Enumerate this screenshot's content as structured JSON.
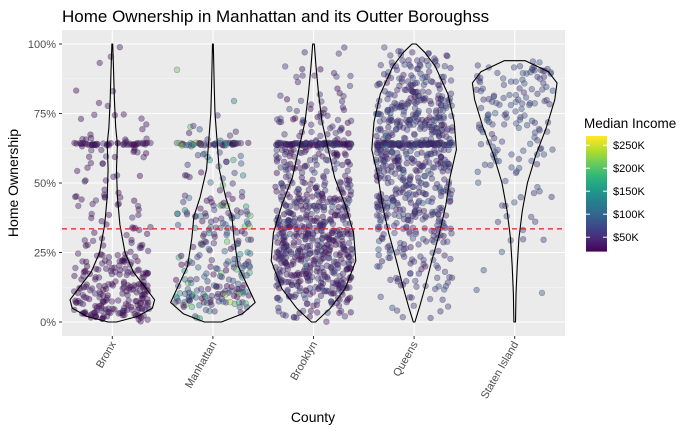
{
  "chart_data": {
    "type": "scatter",
    "subtype": "jittered points with violin overlay",
    "title": "Home Ownership in Manhattan and its Outter Boroughss",
    "xlabel": "County",
    "ylabel": "Home Ownership",
    "categories": [
      "Bronx",
      "Manhattan",
      "Brooklyn",
      "Queens",
      "Staten Island"
    ],
    "ylim": [
      0,
      1
    ],
    "y_ticks": [
      0,
      0.25,
      0.5,
      0.75,
      1.0
    ],
    "y_tick_labels": [
      "0%",
      "25%",
      "50%",
      "75%",
      "100%"
    ],
    "reference_line": {
      "y": 0.335,
      "style": "dashed",
      "color": "#e41a1c"
    },
    "panel_background": "#ebebeb",
    "grid": true,
    "color_scale": {
      "title": "Median Income",
      "palette": "viridis",
      "ticks": [
        50000,
        100000,
        150000,
        200000,
        250000
      ],
      "tick_labels": [
        "$50K",
        "$100K",
        "$150K",
        "$200K",
        "$250K"
      ],
      "range": [
        20000,
        270000
      ]
    },
    "legend_position": "right",
    "approx_point_counts": [
      340,
      300,
      760,
      720,
      150
    ],
    "violins": [
      {
        "county": "Bronx",
        "profile": [
          [
            0.0,
            0.1
          ],
          [
            0.02,
            0.6
          ],
          [
            0.05,
            0.95
          ],
          [
            0.08,
            1.0
          ],
          [
            0.12,
            0.8
          ],
          [
            0.18,
            0.5
          ],
          [
            0.25,
            0.3
          ],
          [
            0.35,
            0.18
          ],
          [
            0.45,
            0.12
          ],
          [
            0.55,
            0.1
          ],
          [
            0.64,
            0.12
          ],
          [
            0.7,
            0.08
          ],
          [
            0.8,
            0.05
          ],
          [
            0.9,
            0.03
          ],
          [
            1.0,
            0.01
          ]
        ]
      },
      {
        "county": "Manhattan",
        "profile": [
          [
            0.0,
            0.2
          ],
          [
            0.03,
            0.7
          ],
          [
            0.07,
            1.0
          ],
          [
            0.12,
            0.85
          ],
          [
            0.2,
            0.6
          ],
          [
            0.3,
            0.5
          ],
          [
            0.38,
            0.45
          ],
          [
            0.45,
            0.3
          ],
          [
            0.55,
            0.15
          ],
          [
            0.65,
            0.1
          ],
          [
            0.75,
            0.05
          ],
          [
            0.85,
            0.03
          ],
          [
            1.0,
            0.01
          ]
        ]
      },
      {
        "county": "Brooklyn",
        "profile": [
          [
            0.0,
            0.05
          ],
          [
            0.05,
            0.4
          ],
          [
            0.12,
            0.75
          ],
          [
            0.22,
            1.0
          ],
          [
            0.32,
            0.95
          ],
          [
            0.42,
            0.75
          ],
          [
            0.52,
            0.5
          ],
          [
            0.62,
            0.35
          ],
          [
            0.72,
            0.2
          ],
          [
            0.82,
            0.12
          ],
          [
            0.92,
            0.06
          ],
          [
            1.0,
            0.02
          ]
        ]
      },
      {
        "county": "Queens",
        "profile": [
          [
            0.0,
            0.02
          ],
          [
            0.05,
            0.12
          ],
          [
            0.12,
            0.25
          ],
          [
            0.22,
            0.42
          ],
          [
            0.32,
            0.6
          ],
          [
            0.42,
            0.75
          ],
          [
            0.52,
            0.85
          ],
          [
            0.62,
            1.0
          ],
          [
            0.72,
            0.95
          ],
          [
            0.82,
            0.8
          ],
          [
            0.92,
            0.5
          ],
          [
            0.97,
            0.25
          ],
          [
            1.0,
            0.05
          ]
        ]
      },
      {
        "county": "Staten Island",
        "profile": [
          [
            0.0,
            0.02
          ],
          [
            0.1,
            0.03
          ],
          [
            0.2,
            0.06
          ],
          [
            0.3,
            0.1
          ],
          [
            0.4,
            0.18
          ],
          [
            0.5,
            0.3
          ],
          [
            0.6,
            0.5
          ],
          [
            0.7,
            0.75
          ],
          [
            0.8,
            0.95
          ],
          [
            0.86,
            1.0
          ],
          [
            0.9,
            0.8
          ],
          [
            0.94,
            0.25
          ]
        ]
      }
    ]
  }
}
